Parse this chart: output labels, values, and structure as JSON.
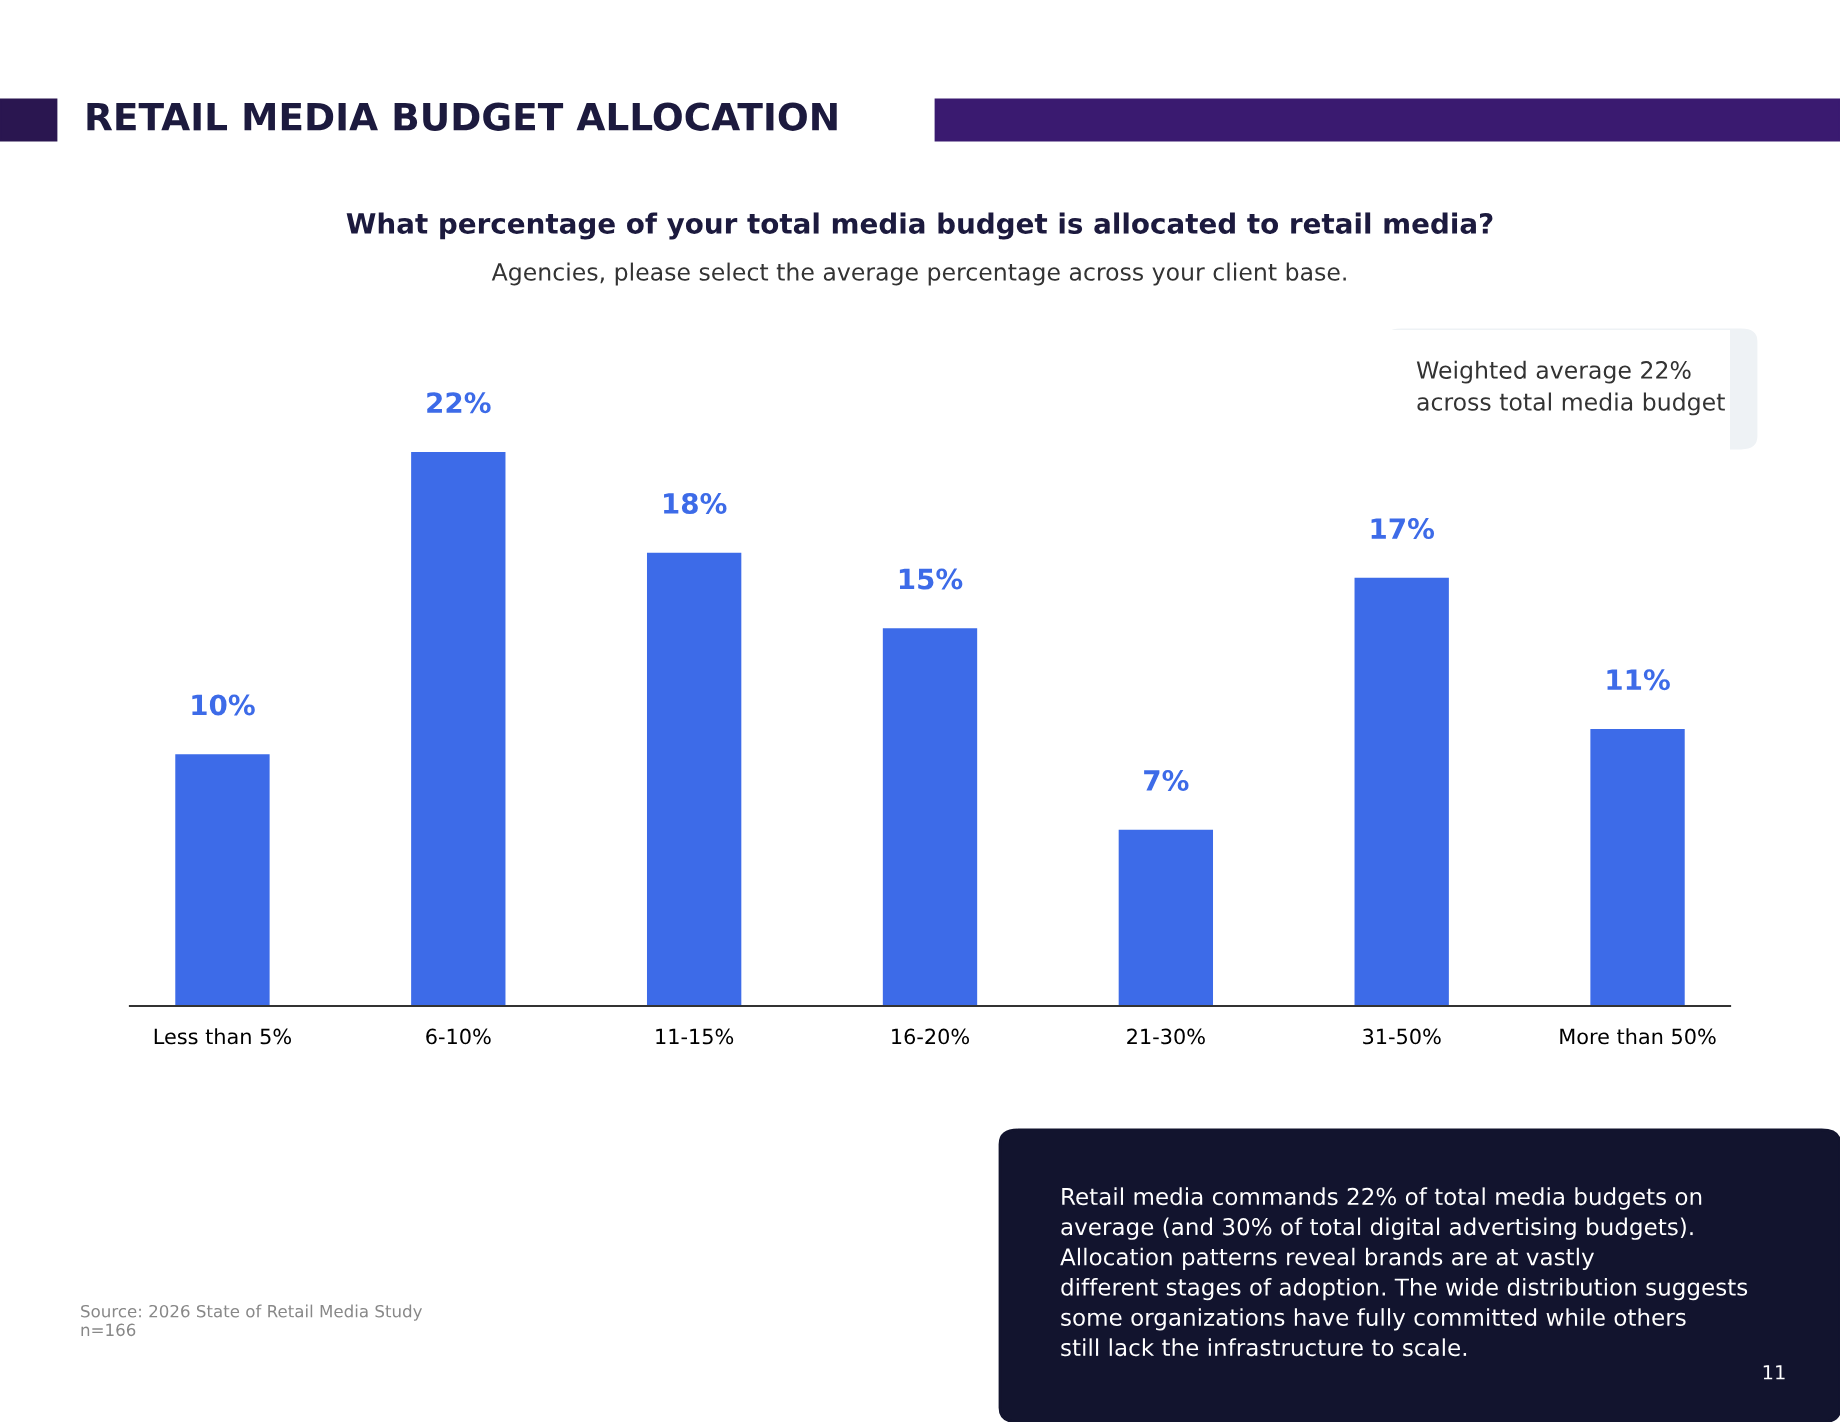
{
  "chart_data": {
    "type": "bar",
    "title": "RETAIL MEDIA BUDGET ALLOCATION",
    "subtitle": "What percentage of your total media budget is allocated to retail media?",
    "categories": [
      "Less than 5%",
      "6-10%",
      "11-15%",
      "16-20%",
      "21-30%",
      "31-50%",
      "More than 50%"
    ],
    "values": [
      10,
      22,
      18,
      15,
      7,
      17,
      11
    ],
    "color": "#3d6be8",
    "data_labels": true,
    "value_labels": [
      "10%",
      "22%",
      "18%",
      "15%",
      "7%",
      "17%",
      "11%"
    ],
    "tick_labels": "x",
    "grid": false,
    "legend": false,
    "annotations": [
      "Agencies, please select the average percentage across your client base.",
      "Weighted average 22%\nacross total media budget",
      "Retail media commands 22% of total media budgets on\naverage (and 30% of total digital advertising budgets).\nAllocation patterns reveal brands are at vastly\ndifferent stages of adoption. The wide distribution suggests\nsome organizations have fully committed while others\nstill lack the infrastructure to scale.",
      "Source: 2026 State of Retail Media Study\nn=166",
      "11"
    ]
  }
}
